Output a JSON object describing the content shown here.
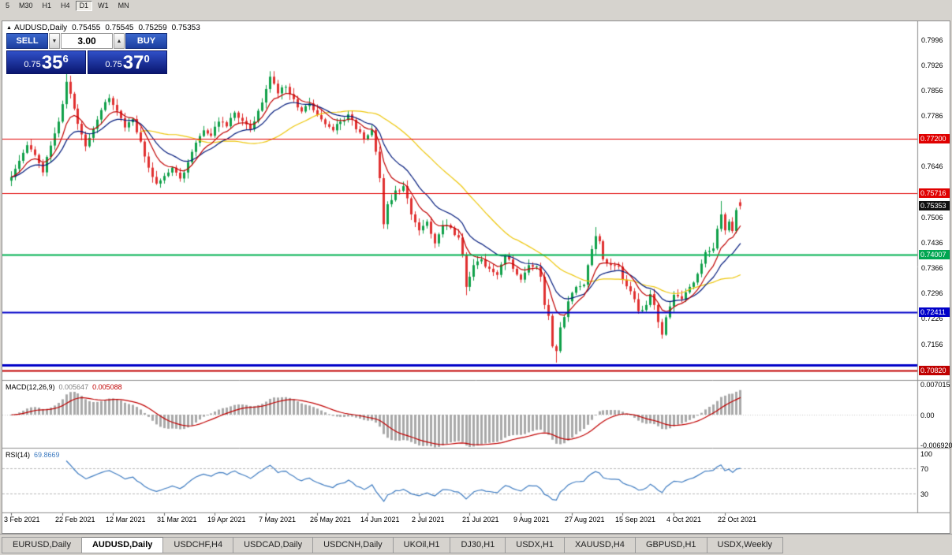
{
  "toolbar": {
    "timeframes": [
      "5",
      "M30",
      "H1",
      "H4",
      "D1",
      "W1",
      "MN"
    ],
    "active_timeframe": "D1"
  },
  "chart": {
    "info": {
      "marker_icon": "▲",
      "symbol": "AUDUSD,Daily",
      "open": "0.75455",
      "high": "0.75545",
      "low": "0.75259",
      "close": "0.75353"
    }
  },
  "trade_panel": {
    "sell_label": "SELL",
    "buy_label": "BUY",
    "volume": "3.00",
    "down_icon": "▼",
    "up_icon": "▲",
    "sell_price": {
      "prefix": "0.75",
      "big": "35",
      "sup": "6"
    },
    "buy_price": {
      "prefix": "0.75",
      "big": "37",
      "sup": "0"
    }
  },
  "indicators": {
    "macd": {
      "name": "MACD(12,26,9)",
      "value_main": "0.005647",
      "value_signal": "0.005088",
      "params": {
        "fast": 12,
        "slow": 26,
        "signal": 9
      },
      "axis": [
        {
          "text": "0.007015",
          "value": 0.007015
        },
        {
          "text": "0.00",
          "value": 0
        },
        {
          "text": "-0.006920",
          "value": -0.00692
        }
      ]
    },
    "rsi": {
      "name": "RSI(14)",
      "value": "69.8669",
      "period": 14,
      "levels": [
        70,
        30
      ],
      "axis": [
        {
          "text": "100",
          "value": 100
        },
        {
          "text": "70",
          "value": 70
        },
        {
          "text": "30",
          "value": 30
        }
      ]
    }
  },
  "chart_data": {
    "type": "candlestick",
    "symbol": "AUDUSD",
    "timeframe": "Daily",
    "current_ohlc": {
      "open": 0.75455,
      "high": 0.75545,
      "low": 0.75259,
      "close": 0.75353
    },
    "bar_count": 187,
    "y_range": [
      0.7055,
      0.8045
    ],
    "y_ticks": [
      "0.7996",
      "0.7926",
      "0.7856",
      "0.7786",
      "0.7716",
      "0.7646",
      "0.7576",
      "0.7506",
      "0.7436",
      "0.7366",
      "0.7296",
      "0.7226",
      "0.7156",
      "0.7086"
    ],
    "x_labels": [
      "3 Feb 2021",
      "22 Feb 2021",
      "12 Mar 2021",
      "31 Mar 2021",
      "19 Apr 2021",
      "7 May 2021",
      "26 May 2021",
      "14 Jun 2021",
      "2 Jul 2021",
      "21 Jul 2021",
      "9 Aug 2021",
      "27 Aug 2021",
      "15 Sep 2021",
      "4 Oct 2021",
      "22 Oct 2021"
    ],
    "bars_per_label": 13,
    "close_anchors": [
      [
        0,
        0.7615
      ],
      [
        2,
        0.766
      ],
      [
        4,
        0.7703
      ],
      [
        6,
        0.7676
      ],
      [
        8,
        0.7628
      ],
      [
        10,
        0.7702
      ],
      [
        12,
        0.7768
      ],
      [
        14,
        0.7878
      ],
      [
        15,
        0.7845
      ],
      [
        17,
        0.7762
      ],
      [
        19,
        0.77
      ],
      [
        21,
        0.7748
      ],
      [
        23,
        0.78
      ],
      [
        25,
        0.7833
      ],
      [
        27,
        0.7798
      ],
      [
        29,
        0.7752
      ],
      [
        31,
        0.7775
      ],
      [
        33,
        0.7713
      ],
      [
        35,
        0.7641
      ],
      [
        37,
        0.7597
      ],
      [
        39,
        0.7618
      ],
      [
        41,
        0.7641
      ],
      [
        43,
        0.7611
      ],
      [
        45,
        0.7656
      ],
      [
        47,
        0.771
      ],
      [
        49,
        0.7744
      ],
      [
        51,
        0.7729
      ],
      [
        53,
        0.7768
      ],
      [
        55,
        0.7755
      ],
      [
        57,
        0.7793
      ],
      [
        59,
        0.777
      ],
      [
        61,
        0.7747
      ],
      [
        63,
        0.7798
      ],
      [
        65,
        0.7858
      ],
      [
        66,
        0.7892
      ],
      [
        68,
        0.7846
      ],
      [
        70,
        0.7864
      ],
      [
        72,
        0.783
      ],
      [
        74,
        0.7796
      ],
      [
        76,
        0.7818
      ],
      [
        78,
        0.7786
      ],
      [
        80,
        0.7761
      ],
      [
        82,
        0.7744
      ],
      [
        84,
        0.7768
      ],
      [
        86,
        0.7788
      ],
      [
        88,
        0.7747
      ],
      [
        90,
        0.772
      ],
      [
        92,
        0.7745
      ],
      [
        93,
        0.7685
      ],
      [
        94,
        0.7612
      ],
      [
        95,
        0.7485
      ],
      [
        96,
        0.754
      ],
      [
        98,
        0.7578
      ],
      [
        100,
        0.759
      ],
      [
        102,
        0.7512
      ],
      [
        104,
        0.7468
      ],
      [
        106,
        0.7492
      ],
      [
        108,
        0.7432
      ],
      [
        110,
        0.7482
      ],
      [
        112,
        0.7475
      ],
      [
        114,
        0.7448
      ],
      [
        115,
        0.74
      ],
      [
        116,
        0.7312
      ],
      [
        117,
        0.734
      ],
      [
        118,
        0.7372
      ],
      [
        120,
        0.7388
      ],
      [
        122,
        0.7362
      ],
      [
        124,
        0.7345
      ],
      [
        126,
        0.7398
      ],
      [
        128,
        0.7362
      ],
      [
        130,
        0.7332
      ],
      [
        132,
        0.7372
      ],
      [
        134,
        0.7368
      ],
      [
        135,
        0.734
      ],
      [
        136,
        0.7262
      ],
      [
        137,
        0.7232
      ],
      [
        138,
        0.7148
      ],
      [
        139,
        0.7135
      ],
      [
        140,
        0.72
      ],
      [
        142,
        0.7272
      ],
      [
        144,
        0.7312
      ],
      [
        146,
        0.7318
      ],
      [
        147,
        0.7372
      ],
      [
        149,
        0.7452
      ],
      [
        150,
        0.7438
      ],
      [
        151,
        0.7388
      ],
      [
        153,
        0.7372
      ],
      [
        155,
        0.7368
      ],
      [
        156,
        0.7332
      ],
      [
        158,
        0.73
      ],
      [
        160,
        0.7245
      ],
      [
        162,
        0.7262
      ],
      [
        163,
        0.7292
      ],
      [
        164,
        0.7262
      ],
      [
        166,
        0.718
      ],
      [
        167,
        0.7228
      ],
      [
        168,
        0.7258
      ],
      [
        169,
        0.729
      ],
      [
        171,
        0.7278
      ],
      [
        173,
        0.7312
      ],
      [
        175,
        0.7348
      ],
      [
        177,
        0.7408
      ],
      [
        179,
        0.7418
      ],
      [
        180,
        0.7472
      ],
      [
        181,
        0.7512
      ],
      [
        182,
        0.7468
      ],
      [
        183,
        0.7492
      ],
      [
        184,
        0.7466
      ],
      [
        185,
        0.7524
      ],
      [
        186,
        0.75353
      ]
    ],
    "wick_overrides": [
      [
        14,
        0.7918,
        null
      ],
      [
        66,
        0.7906,
        null
      ],
      [
        95,
        null,
        0.7476
      ],
      [
        116,
        null,
        0.7289
      ],
      [
        139,
        null,
        0.7103
      ],
      [
        149,
        0.7477,
        null
      ],
      [
        166,
        null,
        0.7169
      ],
      [
        181,
        0.7549,
        null
      ]
    ],
    "horizontal_lines": [
      {
        "price": 0.772,
        "color": "#e00000",
        "width": 1
      },
      {
        "price": 0.75716,
        "color": "#e00000",
        "width": 1
      },
      {
        "price": 0.74007,
        "color": "#00b050",
        "width": 2
      },
      {
        "price": 0.72411,
        "color": "#0000c8",
        "width": 2
      },
      {
        "price": 0.7097,
        "color": "#0000c8",
        "width": 3
      },
      {
        "price": 0.7082,
        "color": "#c00000",
        "width": 2
      }
    ],
    "axis_tags": [
      {
        "text": "0.77200",
        "price": 0.772,
        "color": "#e00000"
      },
      {
        "text": "0.75716",
        "price": 0.75716,
        "color": "#e00000"
      },
      {
        "text": "0.75353",
        "price": 0.75353,
        "color": "#111111"
      },
      {
        "text": "0.74007",
        "price": 0.74007,
        "color": "#00a651"
      },
      {
        "text": "0.72411",
        "price": 0.72411,
        "color": "#0000c8"
      },
      {
        "text": "0.70820",
        "price": 0.7082,
        "color": "#c00000"
      }
    ],
    "moving_averages": [
      {
        "period": 34,
        "type": "sma",
        "color": "#edc60a"
      },
      {
        "period": 16,
        "type": "ema",
        "color": "#001a7c"
      },
      {
        "period": 8,
        "type": "ema",
        "color": "#c00000"
      }
    ]
  },
  "colors": {
    "bull": "#10a04a",
    "bear": "#e03131",
    "macd_hist": "#a9a9a9",
    "macd_signal": "#c00000",
    "rsi_line": "#3f7cc1",
    "rsi_levels": "#b8b8b8",
    "separator": "#8c8c8c"
  },
  "tabs": [
    "EURUSD,Daily",
    "AUDUSD,Daily",
    "USDCHF,H4",
    "USDCAD,Daily",
    "USDCNH,Daily",
    "UKOil,H1",
    "DJ30,H1",
    "USDX,H1",
    "XAUUSD,H4",
    "GBPUSD,H1",
    "USDX,Weekly"
  ],
  "active_tab": "AUDUSD,Daily"
}
